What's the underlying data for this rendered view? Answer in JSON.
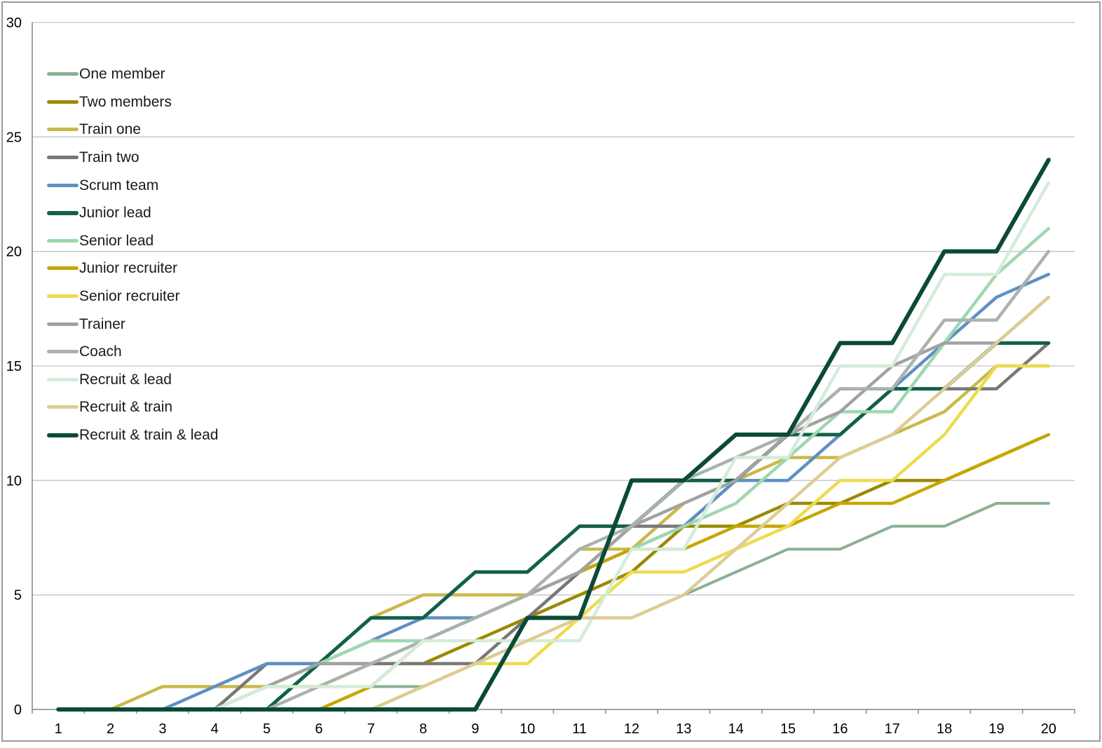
{
  "window": {
    "background": "#ffffff",
    "border_color": "#9b9b9b"
  },
  "chart_data": {
    "type": "line",
    "title": "",
    "xlabel": "",
    "ylabel": "",
    "x_labels": [
      "1",
      "2",
      "3",
      "4",
      "5",
      "6",
      "7",
      "8",
      "9",
      "10",
      "11",
      "12",
      "13",
      "14",
      "15",
      "16",
      "17",
      "18",
      "19",
      "20"
    ],
    "y_ticks": [
      "0",
      "5",
      "10",
      "15",
      "20",
      "25",
      "30"
    ],
    "y_axis": {
      "min": 0,
      "max": 30,
      "step": 5
    },
    "grid": true,
    "legend_position": "top-left-inside",
    "gridline_color": "#c4c4c4",
    "axis_color": "#868686",
    "tick_label_color": "#000000",
    "tick_font_size": 20,
    "legend_font_size": 21,
    "series": [
      {
        "name": "One member",
        "color": "#8ab094",
        "line_width": 4,
        "values": [
          0,
          0,
          0,
          0,
          0,
          0,
          1,
          1,
          2,
          3,
          4,
          4,
          5,
          6,
          7,
          7,
          8,
          8,
          9,
          9
        ]
      },
      {
        "name": "Two members",
        "color": "#998a00",
        "line_width": 4.5,
        "values": [
          0,
          0,
          0,
          0,
          1,
          1,
          2,
          2,
          3,
          4,
          5,
          6,
          8,
          8,
          9,
          9,
          10,
          10,
          11,
          12
        ]
      },
      {
        "name": "Train one",
        "color": "#c9b94b",
        "line_width": 4.5,
        "values": [
          0,
          0,
          1,
          1,
          1,
          2,
          4,
          5,
          5,
          5,
          7,
          7,
          9,
          10,
          11,
          11,
          12,
          13,
          15,
          15
        ]
      },
      {
        "name": "Train two",
        "color": "#787878",
        "line_width": 4.5,
        "values": [
          0,
          0,
          0,
          0,
          2,
          2,
          2,
          2,
          2,
          4,
          6,
          8,
          8,
          10,
          12,
          14,
          14,
          14,
          14,
          16
        ]
      },
      {
        "name": "Scrum team",
        "color": "#5f90c4",
        "line_width": 4.5,
        "values": [
          0,
          0,
          0,
          1,
          2,
          2,
          3,
          4,
          4,
          5,
          6,
          7,
          8,
          10,
          10,
          12,
          14,
          16,
          18,
          19
        ]
      },
      {
        "name": "Junior lead",
        "color": "#12604a",
        "line_width": 5,
        "values": [
          0,
          0,
          0,
          0,
          0,
          2,
          4,
          4,
          6,
          6,
          8,
          8,
          10,
          10,
          12,
          12,
          14,
          14,
          16,
          16
        ]
      },
      {
        "name": "Senior lead",
        "color": "#9ed7b0",
        "line_width": 4.5,
        "values": [
          0,
          0,
          0,
          0,
          1,
          2,
          3,
          3,
          4,
          5,
          6,
          7,
          8,
          9,
          11,
          13,
          13,
          16,
          19,
          21
        ]
      },
      {
        "name": "Junior recruiter",
        "color": "#c7a600",
        "line_width": 4.5,
        "values": [
          0,
          0,
          0,
          0,
          0,
          0,
          1,
          3,
          4,
          5,
          6,
          7,
          7,
          8,
          8,
          9,
          9,
          10,
          11,
          12
        ]
      },
      {
        "name": "Senior recruiter",
        "color": "#ecdc4e",
        "line_width": 4.5,
        "values": [
          0,
          0,
          0,
          0,
          0,
          0,
          0,
          1,
          2,
          2,
          4,
          6,
          6,
          7,
          8,
          10,
          10,
          12,
          15,
          15
        ]
      },
      {
        "name": "Trainer",
        "color": "#a2a2a2",
        "line_width": 4.5,
        "values": [
          0,
          0,
          0,
          0,
          1,
          2,
          2,
          3,
          4,
          5,
          6,
          8,
          9,
          10,
          12,
          13,
          15,
          16,
          16,
          18
        ]
      },
      {
        "name": "Coach",
        "color": "#a9b3ac",
        "line_width": 4.5,
        "values": [
          0,
          0,
          0,
          0,
          0,
          1,
          2,
          3,
          4,
          5,
          7,
          8,
          10,
          11,
          12,
          14,
          14,
          17,
          17,
          20
        ]
      },
      {
        "name": "Recruit & lead",
        "color": "#d4ecd9",
        "line_width": 4.5,
        "values": [
          0,
          0,
          0,
          0,
          1,
          1,
          1,
          3,
          3,
          3,
          3,
          7,
          7,
          11,
          11,
          15,
          15,
          19,
          19,
          23
        ]
      },
      {
        "name": "Recruit & train",
        "color": "#ddcc94",
        "line_width": 4.5,
        "values": [
          0,
          0,
          0,
          0,
          0,
          0,
          0,
          1,
          2,
          3,
          4,
          4,
          5,
          7,
          9,
          11,
          12,
          14,
          16,
          18
        ]
      },
      {
        "name": "Recruit & train & lead",
        "color": "#0b4a36",
        "line_width": 6,
        "values": [
          0,
          0,
          0,
          0,
          0,
          0,
          0,
          0,
          0,
          4,
          4,
          10,
          10,
          12,
          12,
          16,
          16,
          20,
          20,
          24
        ]
      }
    ]
  }
}
